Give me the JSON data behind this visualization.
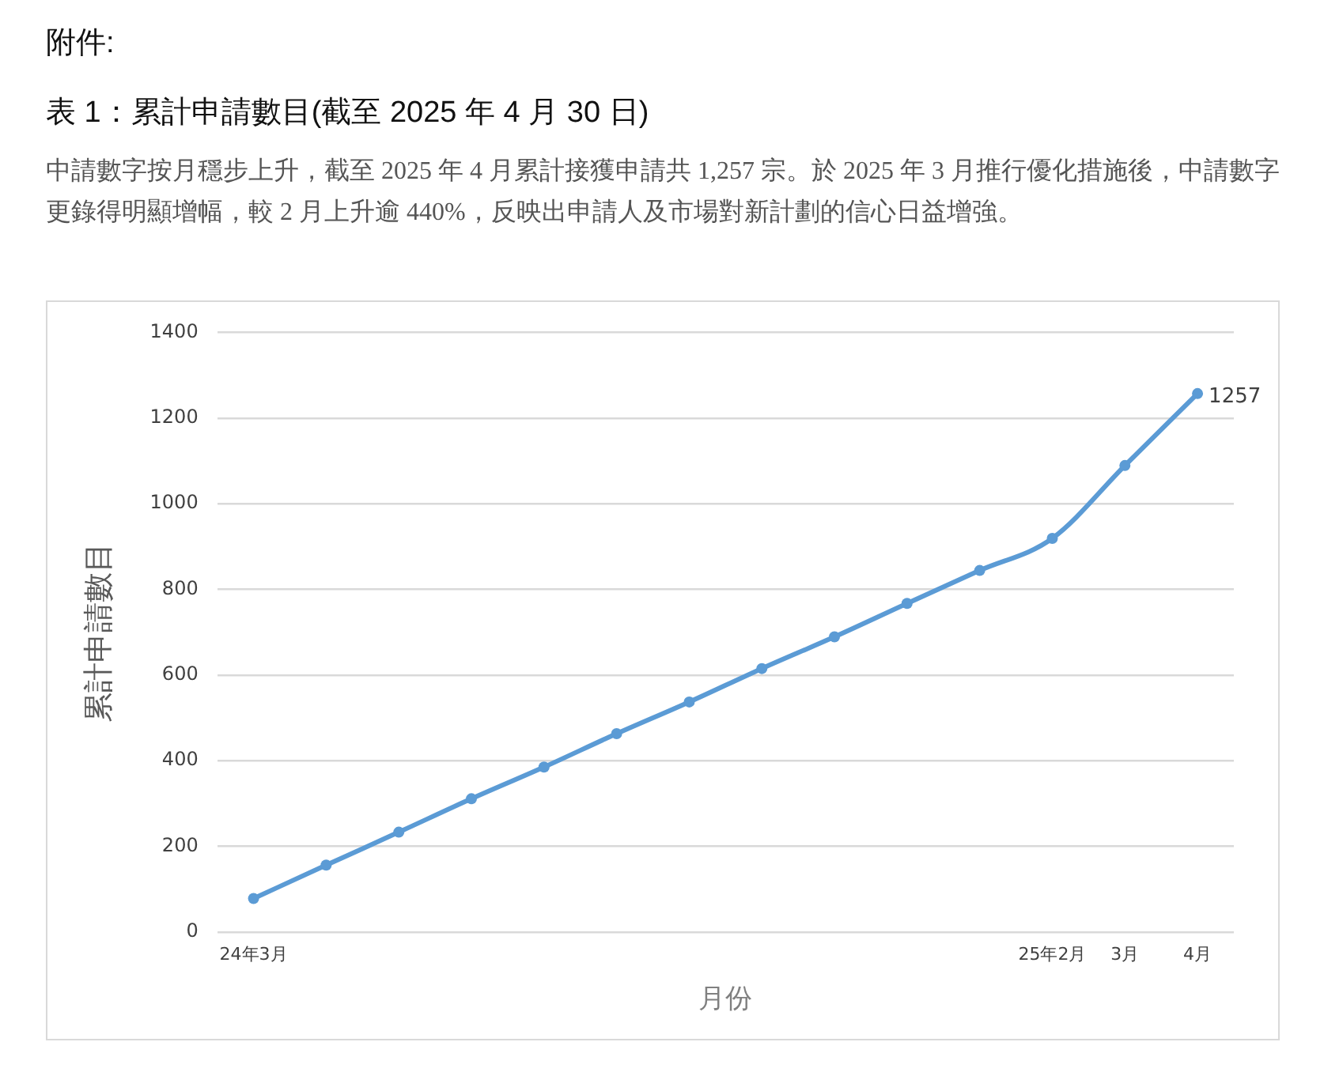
{
  "chart_data": {
    "type": "line",
    "annotations": [
      "附件:"
    ],
    "title": "表 1：累計申請數目(截至 2025 年 4 月 30 日)",
    "subtitle": "中請數字按月穩步上升，截至 2025 年 4 月累計接獲申請共 1,257 宗。於 2025 年 3 月推行優化措施後，中請數字更錄得明顯增幅，較 2 月上升逾 440%，反映出申請人及市場對新計劃的信心日益增強。",
    "xlabel": "月份",
    "ylabel": "累計申請數目",
    "categories": [
      "24年3月",
      null,
      null,
      null,
      null,
      null,
      null,
      null,
      null,
      null,
      null,
      "25年2月",
      "3月",
      "4月"
    ],
    "series": [
      {
        "color": "#5b9bd5",
        "values": [
          78,
          156,
          233,
          311,
          385,
          463,
          537,
          615,
          689,
          767,
          844,
          919,
          1089,
          1257
        ],
        "value_labels": [
          null,
          null,
          null,
          null,
          null,
          null,
          null,
          null,
          null,
          null,
          null,
          null,
          null,
          "1257"
        ]
      }
    ],
    "ylim": [
      0,
      1400
    ],
    "yticks": [
      0,
      200,
      400,
      600,
      800,
      1000,
      1200,
      1400
    ],
    "grid": "y",
    "legend": false,
    "marker": "circle",
    "line_style": "solid"
  }
}
